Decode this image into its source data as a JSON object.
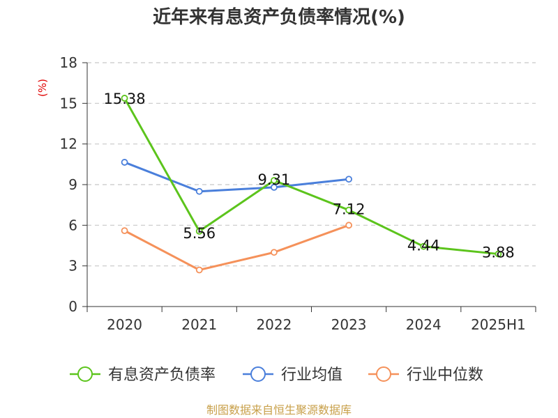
{
  "chart_data": {
    "type": "line",
    "title": "近年来有息资产负债率情况(%)",
    "ylabel": "(%)",
    "categories": [
      "2020",
      "2021",
      "2022",
      "2023",
      "2024",
      "2025H1"
    ],
    "ylim": [
      0,
      18
    ],
    "yticks": [
      0,
      3,
      6,
      9,
      12,
      15,
      18
    ],
    "grid": true,
    "legend_position": "bottom",
    "series": [
      {
        "name": "有息资产负债率",
        "color": "#5cc41c",
        "values": [
          15.38,
          5.56,
          9.31,
          7.12,
          4.44,
          3.88
        ],
        "labels": [
          "15.38",
          "5.56",
          "9.31",
          "7.12",
          "4.44",
          "3.88"
        ]
      },
      {
        "name": "行业均值",
        "color": "#4a7fdb",
        "values": [
          10.65,
          8.5,
          8.8,
          9.4,
          null,
          null
        ]
      },
      {
        "name": "行业中位数",
        "color": "#f5915a",
        "values": [
          5.6,
          2.7,
          4.0,
          6.0,
          null,
          null
        ]
      }
    ],
    "source": "制图数据来自恒生聚源数据库"
  }
}
